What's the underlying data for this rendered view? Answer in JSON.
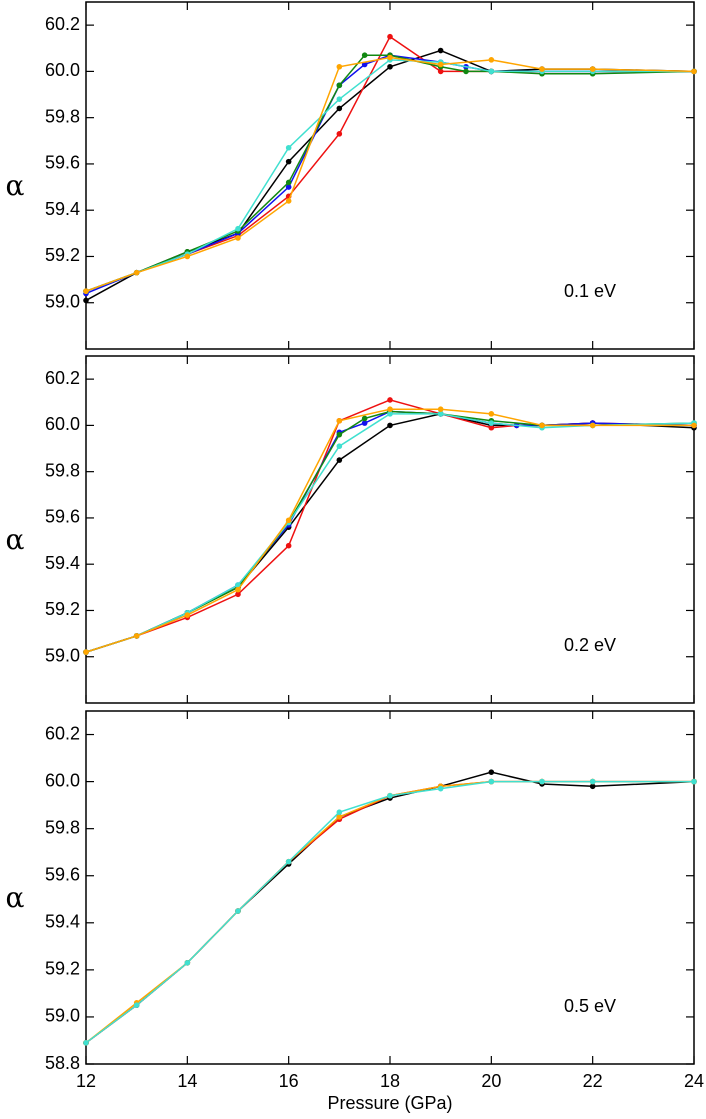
{
  "chart_data": [
    {
      "type": "line",
      "annotation": "0.1 eV",
      "ylabel": "α",
      "xlim": [
        12,
        24
      ],
      "xticks": [
        12,
        14,
        16,
        18,
        20,
        22,
        24
      ],
      "ylim": [
        58.8,
        60.3
      ],
      "yticks": [
        {
          "value": 59,
          "label": "59.0"
        },
        59.2,
        59.4,
        59.6,
        59.8,
        {
          "value": 60,
          "label": "60.0"
        },
        60.2
      ],
      "series": [
        {
          "color": "#000000",
          "x": [
            12,
            13,
            14,
            15,
            16,
            17,
            18,
            19,
            20,
            21,
            22,
            24
          ],
          "values": [
            59.01,
            59.13,
            59.22,
            59.3,
            59.61,
            59.84,
            60.02,
            60.09,
            60.0,
            60.01,
            60.01,
            60.0
          ]
        },
        {
          "color": "#ee1111",
          "x": [
            12,
            13,
            14,
            15,
            16,
            17,
            18,
            19,
            20,
            21,
            22,
            24
          ],
          "values": [
            59.05,
            59.13,
            59.21,
            59.29,
            59.46,
            59.73,
            60.15,
            60.0,
            60.0,
            60.0,
            60.0,
            60.0
          ]
        },
        {
          "color": "#1111ee",
          "x": [
            12,
            13,
            14,
            15,
            16,
            17,
            17.5,
            18,
            19,
            19.5,
            20,
            24
          ],
          "values": [
            59.04,
            59.13,
            59.21,
            59.3,
            59.5,
            59.94,
            60.03,
            60.07,
            60.04,
            60.02,
            60.0,
            60.0
          ]
        },
        {
          "color": "#118811",
          "x": [
            12,
            13,
            14,
            15,
            16,
            17,
            17.5,
            18,
            19,
            19.5,
            20,
            21,
            22,
            24
          ],
          "values": [
            59.05,
            59.13,
            59.22,
            59.31,
            59.52,
            59.94,
            60.07,
            60.07,
            60.02,
            60.0,
            60.0,
            59.99,
            59.99,
            60.0
          ]
        },
        {
          "color": "#40e0d0",
          "x": [
            12,
            13,
            14,
            15,
            16,
            17,
            18,
            19,
            20,
            21,
            22,
            24
          ],
          "values": [
            59.05,
            59.13,
            59.21,
            59.32,
            59.67,
            59.88,
            60.05,
            60.04,
            60.0,
            60.0,
            60.0,
            60.0
          ]
        },
        {
          "color": "#ffa500",
          "x": [
            12,
            13,
            14,
            15,
            16,
            17,
            18,
            19,
            20,
            21,
            22,
            24
          ],
          "values": [
            59.05,
            59.13,
            59.2,
            59.28,
            59.44,
            60.02,
            60.06,
            60.03,
            60.05,
            60.01,
            60.01,
            60.0
          ]
        }
      ]
    },
    {
      "type": "line",
      "annotation": "0.2 eV",
      "ylabel": "α",
      "xlim": [
        12,
        24
      ],
      "xticks": [
        12,
        14,
        16,
        18,
        20,
        22,
        24
      ],
      "ylim": [
        58.8,
        60.3
      ],
      "yticks": [
        {
          "value": 59,
          "label": "59.0"
        },
        59.2,
        59.4,
        59.6,
        59.8,
        {
          "value": 60,
          "label": "60.0"
        },
        60.2
      ],
      "series": [
        {
          "color": "#000000",
          "x": [
            12,
            13,
            14,
            15,
            16,
            17,
            18,
            19,
            20,
            21,
            22,
            24
          ],
          "values": [
            59.02,
            59.09,
            59.19,
            59.3,
            59.56,
            59.85,
            60.0,
            60.05,
            60.0,
            60.0,
            60.01,
            59.99
          ]
        },
        {
          "color": "#ee1111",
          "x": [
            12,
            13,
            14,
            15,
            16,
            17,
            18,
            19,
            20,
            20.5,
            21,
            22,
            24
          ],
          "values": [
            59.02,
            59.09,
            59.17,
            59.27,
            59.48,
            60.02,
            60.11,
            60.05,
            59.99,
            60.0,
            60.0,
            60.01,
            60.0
          ]
        },
        {
          "color": "#1111ee",
          "x": [
            12,
            13,
            14,
            15,
            16,
            17,
            17.5,
            18,
            19,
            20,
            20.5,
            21,
            22,
            24
          ],
          "values": [
            59.02,
            59.09,
            59.19,
            59.31,
            59.57,
            59.97,
            60.01,
            60.06,
            60.05,
            60.01,
            60.0,
            60.0,
            60.01,
            60.0
          ]
        },
        {
          "color": "#118811",
          "x": [
            12,
            13,
            14,
            15,
            16,
            17,
            17.5,
            18,
            19,
            20,
            21,
            22,
            24
          ],
          "values": [
            59.02,
            59.09,
            59.19,
            59.3,
            59.58,
            59.96,
            60.03,
            60.06,
            60.05,
            60.02,
            60.0,
            60.0,
            60.01
          ]
        },
        {
          "color": "#40e0d0",
          "x": [
            12,
            13,
            14,
            15,
            16,
            17,
            18,
            19,
            20,
            21,
            22,
            24
          ],
          "values": [
            59.02,
            59.09,
            59.19,
            59.31,
            59.58,
            59.91,
            60.05,
            60.05,
            60.01,
            59.99,
            60.0,
            60.01
          ]
        },
        {
          "color": "#ffa500",
          "x": [
            12,
            13,
            14,
            15,
            16,
            17,
            18,
            19,
            20,
            21,
            22,
            24
          ],
          "values": [
            59.02,
            59.09,
            59.18,
            59.29,
            59.59,
            60.02,
            60.07,
            60.07,
            60.05,
            60.0,
            60.0,
            60.0
          ]
        }
      ]
    },
    {
      "type": "line",
      "annotation": "0.5 eV",
      "ylabel": "α",
      "xlabel": "Pressure (GPa)",
      "xlim": [
        12,
        24
      ],
      "xticks": [
        12,
        14,
        16,
        18,
        20,
        22,
        24
      ],
      "ylim": [
        58.8,
        60.3
      ],
      "yticks": [
        58.8,
        {
          "value": 59,
          "label": "59.0"
        },
        59.2,
        59.4,
        59.6,
        59.8,
        {
          "value": 60,
          "label": "60.0"
        },
        60.2
      ],
      "series": [
        {
          "color": "#000000",
          "x": [
            12,
            13,
            14,
            15,
            16,
            17,
            18,
            19,
            20,
            21,
            22,
            24
          ],
          "values": [
            58.89,
            59.05,
            59.23,
            59.45,
            59.65,
            59.85,
            59.93,
            59.98,
            60.04,
            59.99,
            59.98,
            60.0
          ]
        },
        {
          "color": "#ee1111",
          "x": [
            12,
            13,
            14,
            15,
            16,
            17,
            18,
            19,
            20,
            21,
            22,
            24
          ],
          "values": [
            58.89,
            59.05,
            59.23,
            59.45,
            59.66,
            59.84,
            59.94,
            59.98,
            60.0,
            60.0,
            60.0,
            60.0
          ]
        },
        {
          "color": "#ffa500",
          "x": [
            12,
            13,
            14,
            15,
            16,
            17,
            18,
            19,
            20,
            21,
            22,
            24
          ],
          "values": [
            58.89,
            59.06,
            59.23,
            59.45,
            59.66,
            59.85,
            59.94,
            59.98,
            60.0,
            60.0,
            60.0,
            60.0
          ]
        },
        {
          "color": "#40e0d0",
          "x": [
            12,
            13,
            14,
            15,
            16,
            17,
            18,
            19,
            20,
            21,
            22,
            24
          ],
          "values": [
            58.89,
            59.05,
            59.23,
            59.45,
            59.66,
            59.87,
            59.94,
            59.97,
            60.0,
            60.0,
            60.0,
            60.0
          ]
        }
      ]
    }
  ]
}
